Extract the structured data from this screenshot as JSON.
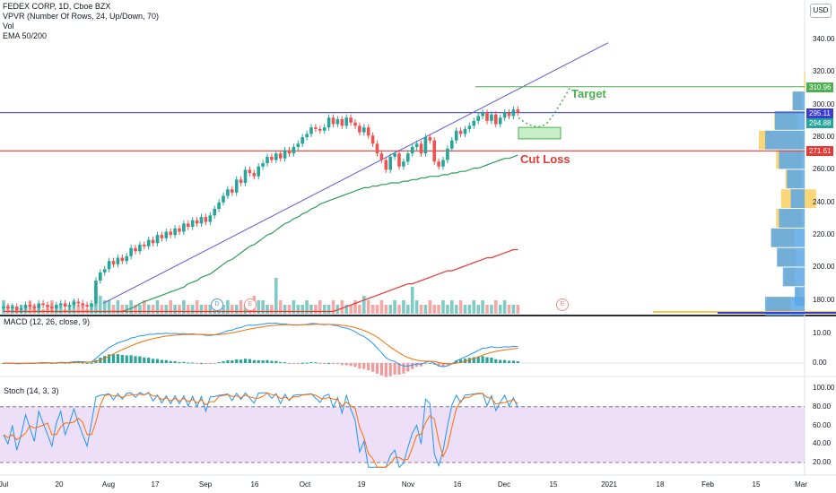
{
  "legend": {
    "symbol": "FEDEX CORP, 1D, Cboe BZX",
    "indicator1": "VPVR (Number Of Rows, 24, Up/Down, 70)",
    "indicator2": "Vol",
    "indicator3": "EMA 50/200"
  },
  "currency_button": "USD",
  "annotations": {
    "target": "Target",
    "cut_loss": "Cut Loss"
  },
  "price_tags": {
    "target": "310.96",
    "current": "295.11",
    "entry": "294.88",
    "stop": "271.61"
  },
  "x_labels": [
    "Jul",
    "20",
    "Aug",
    "17",
    "Sep",
    "16",
    "Oct",
    "19",
    "Nov",
    "16",
    "Dec",
    "15",
    "2021",
    "18",
    "Feb",
    "15",
    "Mar"
  ],
  "events": {
    "d": "D",
    "e1": "E",
    "e2": "E"
  },
  "macd": {
    "title": "MACD (12, 26, close, 9)",
    "ticks": [
      "10.00",
      "0.00"
    ]
  },
  "stoch": {
    "title": "Stoch (14, 3, 3)",
    "ticks": [
      "100.00",
      "80.00",
      "60.00",
      "40.00",
      "20.00"
    ]
  },
  "colors": {
    "up": "#26a69a",
    "down": "#ef5350",
    "trend": "#5b5bd6",
    "ema50": "#2e9e5a",
    "ema200": "#e53935",
    "target": "#4caf50",
    "stop": "#e53935",
    "stoch_bg": "#e3c9f5"
  },
  "chart_data": [
    {
      "type": "candlestick",
      "title": "FEDEX CORP, 1D, Cboe BZX",
      "y_ticks": [
        180,
        200,
        220,
        240,
        260,
        280,
        300,
        320,
        340
      ],
      "ylim": [
        173,
        350
      ],
      "x_ticks": [
        "Jul",
        "20",
        "Aug",
        "17",
        "Sep",
        "16",
        "Oct",
        "19",
        "Nov",
        "16",
        "Dec",
        "15",
        "2021",
        "18",
        "Feb",
        "15",
        "Mar"
      ],
      "close": [
        176,
        175,
        176,
        174,
        175,
        177,
        176,
        175,
        178,
        177,
        176,
        175,
        177,
        178,
        176,
        177,
        179,
        178,
        177,
        176,
        178,
        192,
        197,
        199,
        204,
        202,
        206,
        204,
        207,
        212,
        210,
        214,
        213,
        217,
        215,
        220,
        218,
        222,
        220,
        224,
        222,
        227,
        225,
        229,
        227,
        231,
        228,
        232,
        236,
        240,
        244,
        248,
        246,
        254,
        252,
        260,
        258,
        256,
        262,
        264,
        268,
        266,
        270,
        267,
        272,
        270,
        274,
        276,
        280,
        282,
        286,
        285,
        284,
        286,
        292,
        288,
        291,
        287,
        292,
        289,
        287,
        283,
        286,
        281,
        276,
        270,
        266,
        260,
        268,
        270,
        262,
        265,
        270,
        274,
        276,
        270,
        280,
        278,
        265,
        262,
        266,
        273,
        278,
        284,
        282,
        285,
        287,
        290,
        293,
        295,
        290,
        294,
        288,
        292,
        295,
        293,
        297,
        295
      ],
      "ema50": [
        173,
        173,
        173,
        173,
        173,
        173,
        173,
        173,
        173,
        173,
        173,
        173,
        173,
        173,
        173,
        173,
        173,
        173,
        173,
        173,
        173,
        173,
        173,
        173,
        173,
        173,
        173,
        173,
        174,
        175,
        176,
        178,
        179,
        180,
        181,
        182,
        183,
        184,
        185,
        186,
        187,
        188,
        190,
        191,
        192,
        194,
        195,
        196,
        198,
        200,
        202,
        204,
        205,
        207,
        209,
        211,
        213,
        214,
        216,
        218,
        220,
        221,
        223,
        225,
        227,
        228,
        230,
        231,
        233,
        234,
        236,
        237,
        239,
        240,
        241,
        242,
        243,
        244,
        245,
        246,
        247,
        248,
        249,
        249,
        250,
        250,
        251,
        251,
        252,
        252,
        252,
        253,
        253,
        254,
        254,
        255,
        255,
        256,
        256,
        256,
        257,
        257,
        258,
        258,
        259,
        259,
        260,
        261,
        261,
        262,
        263,
        264,
        265,
        266,
        267,
        267,
        268,
        269
      ],
      "ema200": [
        173,
        173,
        173,
        173,
        173,
        173,
        173,
        173,
        173,
        173,
        173,
        173,
        173,
        173,
        173,
        173,
        173,
        173,
        173,
        173,
        173,
        173,
        173,
        173,
        173,
        173,
        173,
        173,
        173,
        173,
        173,
        173,
        173,
        173,
        173,
        173,
        173,
        173,
        173,
        173,
        173,
        173,
        173,
        173,
        173,
        173,
        173,
        173,
        173,
        173,
        173,
        173,
        173,
        173,
        173,
        173,
        173,
        173,
        173,
        173,
        173,
        173,
        173,
        173,
        173,
        173,
        173,
        173,
        173,
        173,
        173,
        173,
        173,
        173,
        173,
        173,
        174,
        175,
        176,
        177,
        178,
        179,
        180,
        181,
        182,
        183,
        184,
        185,
        186,
        187,
        188,
        189,
        190,
        190,
        191,
        192,
        193,
        194,
        195,
        196,
        197,
        198,
        198,
        199,
        200,
        201,
        202,
        203,
        204,
        205,
        206,
        206,
        207,
        208,
        209,
        210,
        211,
        211
      ],
      "volume_relative": [
        3,
        2,
        2,
        1,
        2,
        2,
        3,
        2,
        2,
        1,
        2,
        3,
        2,
        2,
        1,
        2,
        3,
        2,
        2,
        1,
        2,
        6,
        4,
        3,
        3,
        2,
        3,
        2,
        2,
        3,
        2,
        2,
        3,
        2,
        2,
        3,
        2,
        2,
        3,
        2,
        2,
        3,
        2,
        2,
        3,
        2,
        2,
        2,
        3,
        2,
        2,
        3,
        2,
        2,
        3,
        2,
        2,
        4,
        3,
        3,
        2,
        2,
        8,
        3,
        2,
        2,
        3,
        2,
        2,
        3,
        2,
        2,
        3,
        2,
        2,
        3,
        2,
        3,
        2,
        2,
        3,
        2,
        4,
        3,
        2,
        2,
        3,
        2,
        2,
        3,
        2,
        3,
        2,
        6,
        3,
        2,
        2,
        3,
        2,
        2,
        3,
        2,
        3,
        2,
        3,
        2,
        2,
        3,
        2,
        3,
        2,
        2,
        3,
        2,
        3,
        2,
        2,
        2
      ],
      "levels": {
        "target": 310.96,
        "current": 295.11,
        "entry": 294.88,
        "stop": 271.61
      },
      "projection": "Target",
      "stop_label": "Cut Loss"
    },
    {
      "type": "line",
      "title": "MACD (12, 26, close, 9)",
      "y_ticks": [
        10,
        0
      ],
      "ylim": [
        -8,
        15
      ]
    },
    {
      "type": "line",
      "title": "Stoch (14, 3, 3)",
      "y_ticks": [
        100,
        80,
        60,
        40,
        20
      ],
      "ylim": [
        10,
        102
      ],
      "bands": [
        20,
        80
      ]
    }
  ]
}
